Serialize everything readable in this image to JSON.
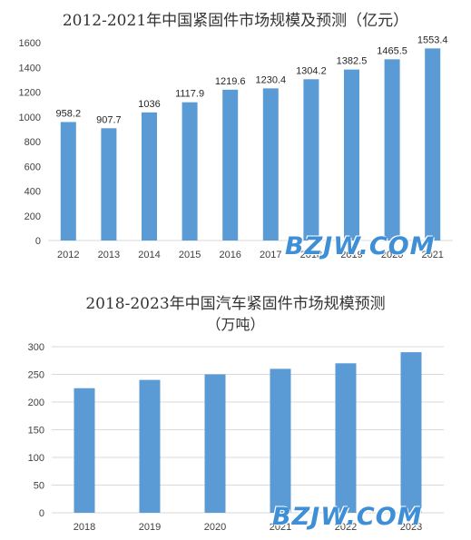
{
  "charts": [
    {
      "title": "2012-2021年中国紧固件市场规模及预测（亿元）",
      "watermark": "BZJW.COM"
    },
    {
      "title_line1": "2018-2023年中国汽车紧固件市场规模预测",
      "title_line2": "（万吨）",
      "watermark": "BZJW.COM"
    }
  ],
  "chart_data": [
    {
      "type": "bar",
      "title": "2012-2021年中国紧固件市场规模及预测（亿元）",
      "categories": [
        "2012",
        "2013",
        "2014",
        "2015",
        "2016",
        "2017",
        "2018",
        "2019",
        "2020",
        "2021"
      ],
      "values": [
        958.2,
        907.7,
        1036,
        1117.9,
        1219.6,
        1230.4,
        1304.2,
        1382.5,
        1465.5,
        1553.4
      ],
      "data_labels": [
        "958.2",
        "907.7",
        "1036",
        "1117.9",
        "1219.6",
        "1230.4",
        "1304.2",
        "1382.5",
        "1465.5",
        "1553.4"
      ],
      "yticks": [
        "0",
        "200",
        "400",
        "600",
        "800",
        "1000",
        "1200",
        "1400",
        "1600"
      ],
      "ylim": [
        0,
        1600
      ],
      "grid": false,
      "color": "#5b9bd5"
    },
    {
      "type": "bar",
      "title": "2018-2023年中国汽车紧固件市场规模预测（万吨）",
      "categories": [
        "2018",
        "2019",
        "2020",
        "2021",
        "2022",
        "2023"
      ],
      "values": [
        225,
        240,
        250,
        260,
        270,
        290
      ],
      "yticks": [
        "0",
        "50",
        "100",
        "150",
        "200",
        "250",
        "300"
      ],
      "ylim": [
        0,
        300
      ],
      "grid": true,
      "color": "#5b9bd5"
    }
  ]
}
